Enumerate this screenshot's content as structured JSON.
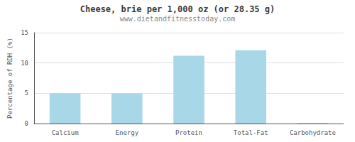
{
  "chart_data": {
    "type": "bar",
    "title": "Cheese, brie per 1,000 oz (or 28.35 g)",
    "subtitle": "www.dietandfitnesstoday.com",
    "categories": [
      "Calcium",
      "Energy",
      "Protein",
      "Total-Fat",
      "Carbohydrate"
    ],
    "values": [
      5.0,
      5.0,
      11.2,
      12.1,
      0.1
    ],
    "color": "#a8d8e8",
    "ylabel": "Percentage of RDH (%)",
    "ylim": [
      0,
      15
    ],
    "yticks": [
      0,
      5,
      10,
      15
    ],
    "grid": true
  }
}
